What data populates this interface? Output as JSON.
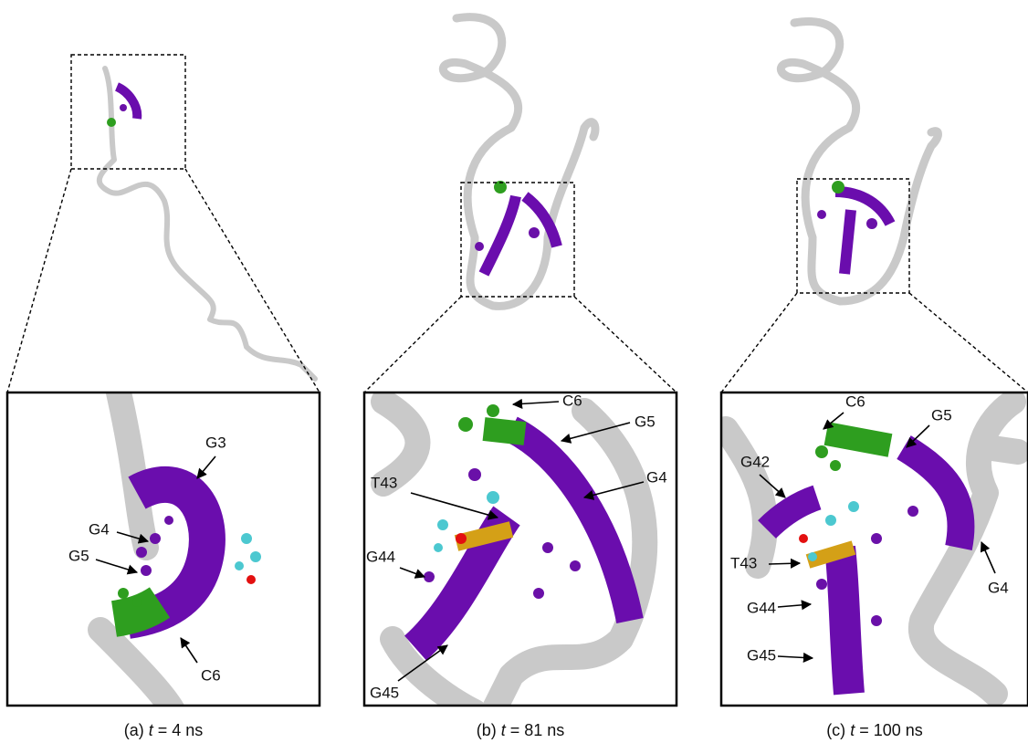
{
  "panels": [
    {
      "caption": {
        "label": "(a)",
        "variable": "t",
        "value": "= 4 ns"
      },
      "annotations": [
        "G3",
        "G4",
        "G5",
        "C6"
      ]
    },
    {
      "caption": {
        "label": "(b)",
        "variable": "t",
        "value": "= 81 ns"
      },
      "annotations": [
        "C6",
        "G5",
        "G4",
        "T43",
        "G44",
        "G45"
      ]
    },
    {
      "caption": {
        "label": "(c)",
        "variable": "t",
        "value": "= 100 ns"
      },
      "annotations": [
        "C6",
        "G5",
        "G42",
        "T43",
        "G44",
        "G45",
        "G4"
      ]
    }
  ]
}
